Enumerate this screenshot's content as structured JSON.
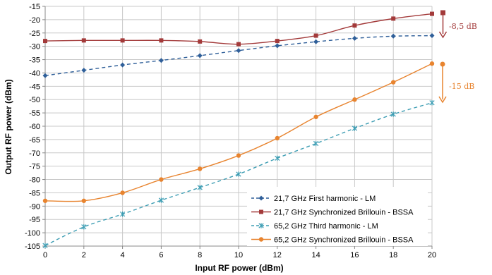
{
  "chart_data": {
    "type": "line",
    "title": "",
    "xlabel": "Input RF power (dBm)",
    "ylabel": "Output RF power (dBm)",
    "xlim": [
      0,
      20
    ],
    "ylim": [
      -105,
      -15
    ],
    "x_ticks": [
      0,
      2,
      4,
      6,
      8,
      10,
      12,
      14,
      16,
      18,
      20
    ],
    "y_ticks": [
      -15,
      -20,
      -25,
      -30,
      -35,
      -40,
      -45,
      -50,
      -55,
      -60,
      -65,
      -70,
      -75,
      -80,
      -85,
      -90,
      -95,
      -100,
      -105
    ],
    "grid": true,
    "legend_position": "bottom-right",
    "series": [
      {
        "name": "21,7 GHz First harmonic - LM",
        "color": "#2f5f99",
        "line_style": "dashed",
        "marker": "diamond",
        "x": [
          0,
          2,
          4,
          6,
          8,
          10,
          12,
          14,
          16,
          18,
          20
        ],
        "y": [
          -41,
          -39,
          -37,
          -35.3,
          -33.5,
          -31.6,
          -29.8,
          -28.3,
          -27,
          -26.2,
          -26
        ]
      },
      {
        "name": "21,7 GHz Synchronized Brillouin - BSSA",
        "color": "#a33a3a",
        "line_style": "solid",
        "marker": "square",
        "x": [
          0,
          2,
          4,
          6,
          8,
          10,
          12,
          14,
          16,
          18,
          20
        ],
        "y": [
          -28,
          -27.8,
          -27.8,
          -27.8,
          -28.2,
          -29.2,
          -28,
          -26,
          -22.2,
          -19.6,
          -17.8
        ]
      },
      {
        "name": "65,2 GHz Third harmonic - LM",
        "color": "#3d9db3",
        "line_style": "dashed",
        "marker": "star",
        "x": [
          0,
          2,
          4,
          6,
          8,
          10,
          12,
          14,
          16,
          18,
          20
        ],
        "y": [
          -104.8,
          -97.8,
          -93,
          -87.8,
          -83,
          -78,
          -72,
          -66.5,
          -60.8,
          -55.5,
          -51.2
        ]
      },
      {
        "name": "65,2 GHz Synchronized Brillouin - BSSA",
        "color": "#e8842f",
        "line_style": "solid",
        "marker": "circle",
        "x": [
          0,
          2,
          4,
          6,
          8,
          10,
          12,
          14,
          16,
          18,
          20
        ],
        "y": [
          -88,
          -88,
          -85,
          -80,
          -76,
          -71,
          -64.5,
          -56.5,
          -50,
          -43.5,
          -36.5
        ]
      }
    ],
    "annotations": [
      {
        "text": "-8,5 dB",
        "color": "#a33a3a"
      },
      {
        "text": "-15 dB",
        "color": "#e8842f"
      }
    ]
  }
}
